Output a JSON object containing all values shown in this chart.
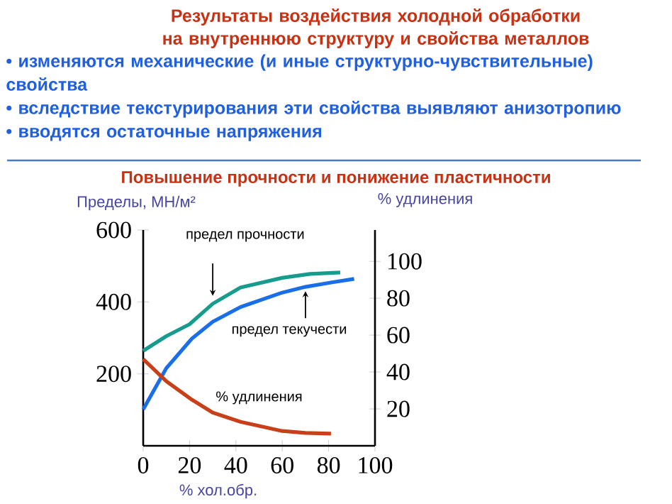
{
  "chart_data": {
    "type": "line",
    "title": "Результаты воздействия холодной обработки на внутреннюю структуру и свойства металлов",
    "subtitle": "Повышение прочности и понижение пластичности",
    "annotations": [
      "• изменяются механические (и иные структурно-чувствительные) свойства",
      "• вследствие текстурирования эти свойства выявляют анизотропию",
      "• вводятся остаточные напряжения"
    ],
    "xlabel": "% хол.обр.",
    "ylabel": "Пределы, МН/м²",
    "y2label": "% удлинения",
    "xlim": [
      0,
      100
    ],
    "xticks": [
      0,
      20,
      40,
      60,
      80,
      100
    ],
    "ylim": [
      0,
      600
    ],
    "yticks": [
      200,
      400,
      600
    ],
    "y2lim": [
      0,
      117
    ],
    "y2ticks": [
      20,
      40,
      60,
      80,
      100
    ],
    "series": [
      {
        "name": "предел прочности",
        "color": "#169b8c",
        "x": [
          0,
          10,
          20,
          30,
          42,
          60,
          72,
          85
        ],
        "values": [
          264,
          305,
          338,
          395,
          440,
          467,
          478,
          482
        ]
      },
      {
        "name": "предел текучести",
        "color": "#1a6ee8",
        "x": [
          0,
          10,
          21,
          30,
          42,
          60,
          70,
          81,
          91
        ],
        "values": [
          101,
          216,
          298,
          345,
          386,
          426,
          442,
          454,
          464
        ]
      },
      {
        "name": "% удлинения",
        "color": "#c8401a",
        "axis": "y2",
        "x": [
          0,
          10,
          21,
          30,
          42,
          60,
          70,
          81
        ],
        "values": [
          47,
          35,
          25,
          18,
          13,
          8,
          7,
          6.6
        ]
      }
    ]
  }
}
